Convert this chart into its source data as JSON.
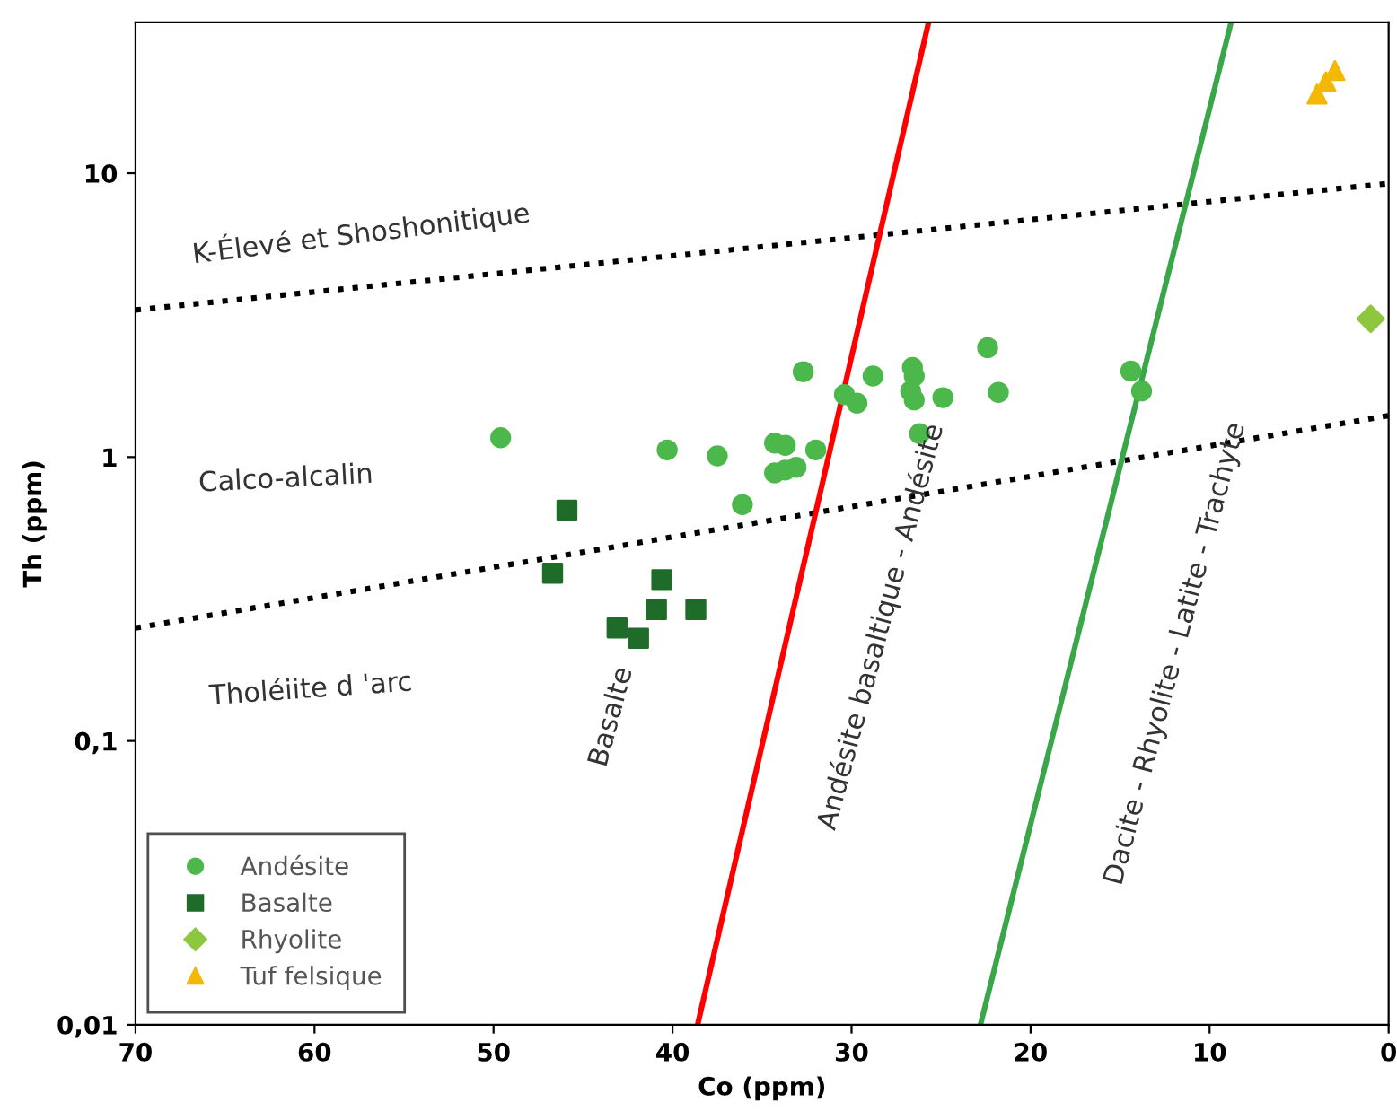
{
  "chart_data": {
    "type": "scatter",
    "xlabel": "Co (ppm)",
    "ylabel": "Th (ppm)",
    "log": "y",
    "xlim": [
      70,
      0
    ],
    "xticks": [
      70,
      60,
      50,
      40,
      30,
      20,
      10,
      0
    ],
    "ylim": [
      0.01,
      34
    ],
    "yticks": [
      {
        "value": 0.01,
        "label": "0,01"
      },
      {
        "value": 0.1,
        "label": "0,1"
      },
      1,
      10
    ],
    "grid": false,
    "legend": "bottom left",
    "series": [
      {
        "name": "Andésite",
        "color": "#4cb84c",
        "marker": "circle",
        "x": [
          49.6,
          40.3,
          37.5,
          36.1,
          34.3,
          33.7,
          34.3,
          33.7,
          33.1,
          32.0,
          32.7,
          30.4,
          29.7,
          28.8,
          26.6,
          26.5,
          26.7,
          26.5,
          26.2,
          24.9,
          22.4,
          21.8,
          14.4,
          13.8
        ],
        "values": [
          1.17,
          1.06,
          1.01,
          0.68,
          1.12,
          1.1,
          0.88,
          0.9,
          0.92,
          1.06,
          2.0,
          1.66,
          1.55,
          1.93,
          2.07,
          1.93,
          1.71,
          1.59,
          1.21,
          1.62,
          2.43,
          1.69,
          2.01,
          1.71
        ]
      },
      {
        "name": "Basalte",
        "color": "#1e6b2a",
        "marker": "square",
        "x": [
          45.9,
          46.7,
          40.6,
          40.9,
          38.7,
          43.1,
          41.9
        ],
        "values": [
          0.65,
          0.39,
          0.37,
          0.29,
          0.29,
          0.25,
          0.23
        ]
      },
      {
        "name": "Rhyolite",
        "color": "#8dc63f",
        "marker": "diamond",
        "x": [
          1.0
        ],
        "values": [
          3.07
        ]
      },
      {
        "name": "Tuf felsique",
        "color": "#f5b800",
        "marker": "triangle",
        "x": [
          4.0,
          3.5,
          3.0
        ],
        "values": [
          19,
          21,
          23
        ]
      },
      {
        "type": "line",
        "color": "#000000",
        "line_style": "dotted",
        "marker": "none",
        "x": [
          70,
          0
        ],
        "values": [
          3.3,
          9.2
        ]
      },
      {
        "type": "line",
        "color": "#000000",
        "line_style": "dotted",
        "marker": "none",
        "x": [
          70,
          0
        ],
        "values": [
          0.25,
          1.4
        ]
      },
      {
        "type": "line",
        "color": "#ff0000",
        "line_style": "solid",
        "marker": "none",
        "x": [
          38.6,
          25.7
        ],
        "values": [
          0.01,
          34
        ]
      },
      {
        "type": "line",
        "color": "#3aa64a",
        "line_style": "solid",
        "marker": "none",
        "x": [
          22.8,
          8.8
        ],
        "values": [
          0.01,
          34
        ]
      }
    ],
    "annotations": [
      "K-Élevé et Shoshonitique",
      "Calco-alcalin",
      "Tholéiite d 'arc",
      "Basalte",
      "Andésite basaltique - Andésite",
      "Dacite - Rhyolite - Latite - Trachyte"
    ]
  }
}
